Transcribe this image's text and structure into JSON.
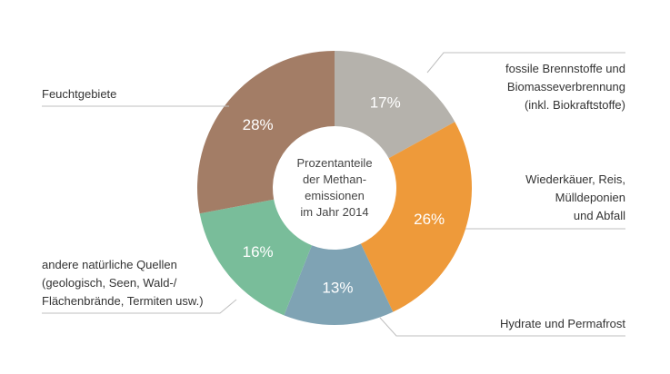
{
  "chart_data": {
    "type": "pie",
    "center_label": [
      "Prozentanteile",
      "der Methan-",
      "emissionen",
      "im Jahr 2014"
    ],
    "slices": [
      {
        "label": [
          "fossile Brennstoffe und",
          "Biomasseverbrennung",
          "(inkl. Biokraftstoffe)"
        ],
        "value": 17,
        "value_label": "17%",
        "color": "#b5b2ac"
      },
      {
        "label": [
          "Wiederkäuer, Reis,",
          "Mülldeponien",
          "und Abfall"
        ],
        "value": 26,
        "value_label": "26%",
        "color": "#ee9a3a"
      },
      {
        "label": [
          "Hydrate und Permafrost"
        ],
        "value": 13,
        "value_label": "13%",
        "color": "#7fa3b4"
      },
      {
        "label": [
          "andere natürliche Quellen",
          "(geologisch, Seen, Wald-/",
          "Flächenbrände, Termiten usw.)"
        ],
        "value": 16,
        "value_label": "16%",
        "color": "#79bd9a"
      },
      {
        "label": [
          "Feuchtgebiete"
        ],
        "value": 28,
        "value_label": "28%",
        "color": "#a37d66"
      }
    ]
  }
}
